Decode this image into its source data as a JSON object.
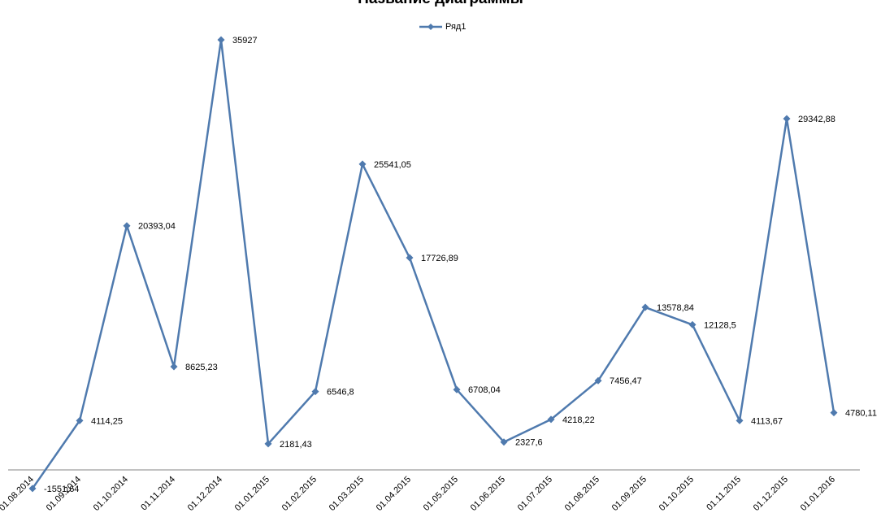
{
  "chart_data": {
    "type": "line",
    "title": "Название диаграммы",
    "categories": [
      "01.08.2014",
      "01.09.2014",
      "01.10.2014",
      "01.11.2014",
      "01.12.2014",
      "01.01.2015",
      "01.02.2015",
      "01.03.2015",
      "01.04.2015",
      "01.05.2015",
      "01.06.2015",
      "01.07.2015",
      "01.08.2015",
      "01.09.2015",
      "01.10.2015",
      "01.11.2015",
      "01.12.2015",
      "01.01.2016"
    ],
    "series": [
      {
        "name": "Ряд1",
        "values": [
          -1551.64,
          4114.25,
          20393.04,
          8625.23,
          35927,
          2181.43,
          6546.8,
          25541.05,
          17726.89,
          6708.04,
          2327.6,
          4218.22,
          7456.47,
          13578.84,
          12128.5,
          4113.67,
          29342.88,
          4780.11
        ],
        "labels": [
          "-1551,64",
          "4114,25",
          "20393,04",
          "8625,23",
          "35927",
          "2181,43",
          "6546,8",
          "25541,05",
          "17726,89",
          "6708,04",
          "2327,6",
          "4218,22",
          "7456,47",
          "13578,84",
          "12128,5",
          "4113,67",
          "29342,88",
          "4780,11"
        ],
        "color": "#4F7AAE"
      }
    ],
    "legend_position": "top",
    "grid": false,
    "axis_color": "#868686"
  }
}
